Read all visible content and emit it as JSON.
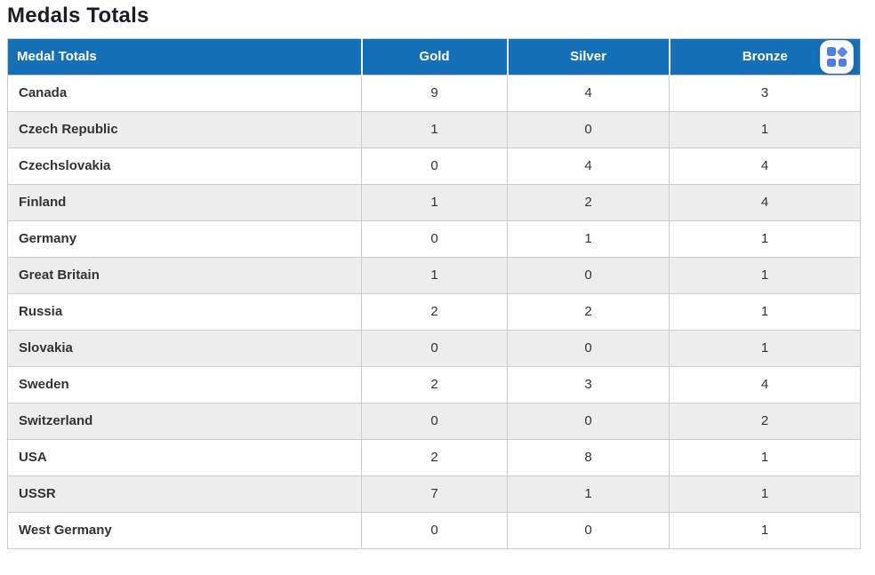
{
  "page": {
    "title": "Medals Totals"
  },
  "table": {
    "columns": [
      "Medal Totals",
      "Gold",
      "Silver",
      "Bronze"
    ],
    "rows": [
      {
        "country": "Canada",
        "gold": "9",
        "silver": "4",
        "bronze": "3"
      },
      {
        "country": "Czech Republic",
        "gold": "1",
        "silver": "0",
        "bronze": "1"
      },
      {
        "country": "Czechslovakia",
        "gold": "0",
        "silver": "4",
        "bronze": "4"
      },
      {
        "country": "Finland",
        "gold": "1",
        "silver": "2",
        "bronze": "4"
      },
      {
        "country": "Germany",
        "gold": "0",
        "silver": "1",
        "bronze": "1"
      },
      {
        "country": "Great Britain",
        "gold": "1",
        "silver": "0",
        "bronze": "1"
      },
      {
        "country": "Russia",
        "gold": "2",
        "silver": "2",
        "bronze": "1"
      },
      {
        "country": "Slovakia",
        "gold": "0",
        "silver": "0",
        "bronze": "1"
      },
      {
        "country": "Sweden",
        "gold": "2",
        "silver": "3",
        "bronze": "4"
      },
      {
        "country": "Switzerland",
        "gold": "0",
        "silver": "0",
        "bronze": "2"
      },
      {
        "country": "USA",
        "gold": "2",
        "silver": "8",
        "bronze": "1"
      },
      {
        "country": "USSR",
        "gold": "7",
        "silver": "1",
        "bronze": "1"
      },
      {
        "country": "West Germany",
        "gold": "0",
        "silver": "0",
        "bronze": "1"
      }
    ]
  },
  "icons": {
    "widgets": "grid-2x2-with-diamond"
  },
  "colors": {
    "header_bg": "#1670b8",
    "header_text": "#ffffff",
    "row_stripe": "#ededed",
    "border": "#cccccc",
    "icon_blue": "#4d7fe3",
    "title_text": "#1c1c27"
  }
}
